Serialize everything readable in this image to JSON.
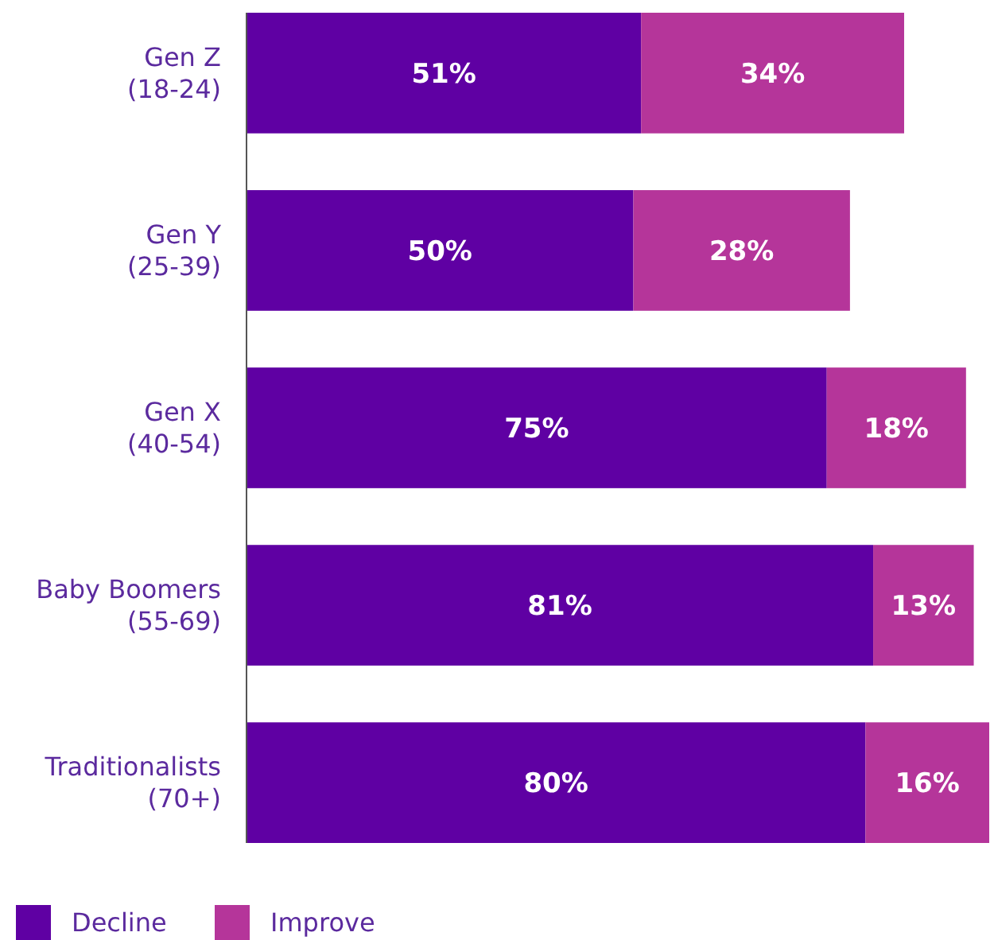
{
  "chart_data": {
    "type": "bar",
    "orientation": "horizontal",
    "stacked": true,
    "legend": "bottom left",
    "categories": [
      "Gen Z\n(18-24)",
      "Gen Y\n(25-39)",
      "Gen X\n(40-54)",
      "Baby Boomers\n(55-69)",
      "Traditionalists\n(70+)"
    ],
    "series": [
      {
        "name": "Decline",
        "color": "#5f00a3",
        "values": [
          51,
          50,
          75,
          81,
          80
        ],
        "value_labels": [
          "51%",
          "50%",
          "75%",
          "81%",
          "80%"
        ]
      },
      {
        "name": "Improve",
        "color": "#b5359a",
        "values": [
          34,
          28,
          18,
          13,
          16
        ],
        "value_labels": [
          "34%",
          "28%",
          "18%",
          "13%",
          "16%"
        ]
      }
    ]
  }
}
